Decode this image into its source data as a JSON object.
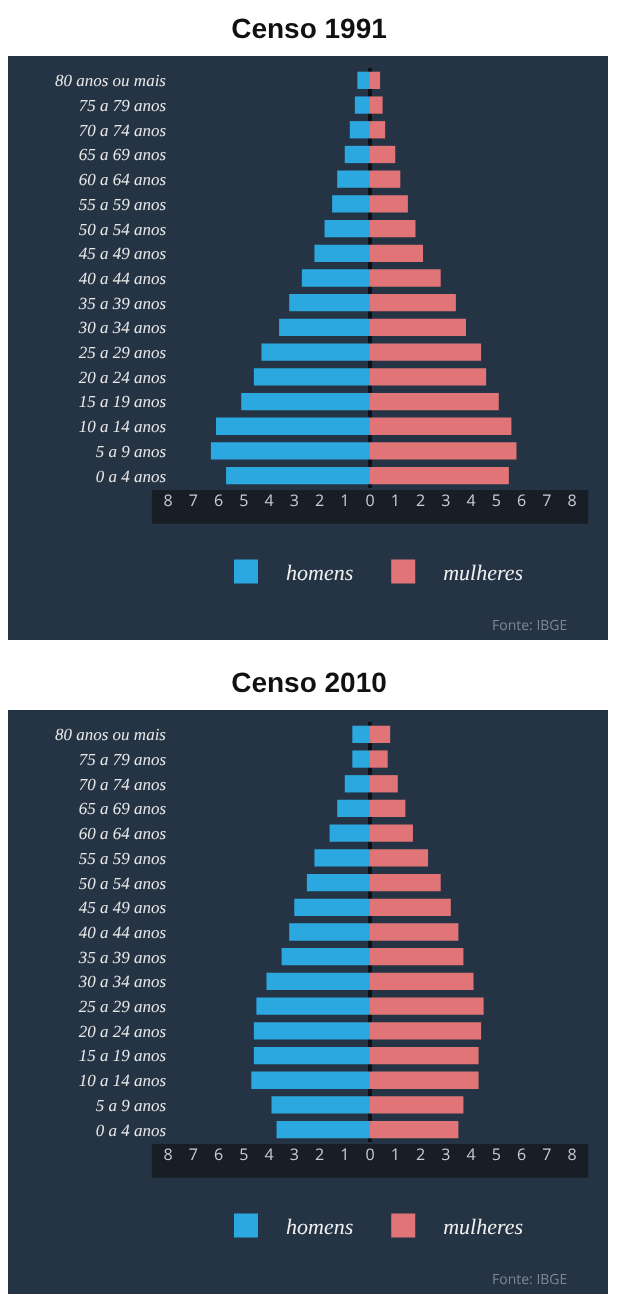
{
  "chart_data": [
    {
      "type": "bar",
      "title": "Censo 1991",
      "orientation": "horizontal",
      "legend": "bottom",
      "stacked": true,
      "categories": [
        "80 anos ou mais",
        "75 a 79 anos",
        "70 a 74 anos",
        "65 a 69 anos",
        "60 a 64 anos",
        "55 a 59 anos",
        "50 a 54 anos",
        "45 a 49 anos",
        "40 a 44 anos",
        "35 a 39 anos",
        "30 a 34 anos",
        "25 a 29 anos",
        "20 a 24 anos",
        "15 a 19 anos",
        "10 a 14 anos",
        "5 a 9 anos",
        "0 a 4 anos"
      ],
      "series": [
        {
          "name": "homens",
          "color": "#2ba8e0",
          "values": [
            -0.5,
            -0.6,
            -0.8,
            -1.0,
            -1.3,
            -1.5,
            -1.8,
            -2.2,
            -2.7,
            -3.2,
            -3.6,
            -4.3,
            -4.6,
            -5.1,
            -6.1,
            -6.3,
            -5.7
          ]
        },
        {
          "name": "mulheres",
          "color": "#e07476",
          "values": [
            0.4,
            0.5,
            0.6,
            1.0,
            1.2,
            1.5,
            1.8,
            2.1,
            2.8,
            3.4,
            3.8,
            4.4,
            4.6,
            5.1,
            5.6,
            5.8,
            5.5
          ]
        }
      ],
      "xlim": [
        -8,
        8
      ],
      "xticks": [
        {
          "value": -8,
          "label": "8"
        },
        {
          "value": -7,
          "label": "7"
        },
        {
          "value": -6,
          "label": "6"
        },
        {
          "value": -5,
          "label": "5"
        },
        {
          "value": -4,
          "label": "4"
        },
        {
          "value": -3,
          "label": "3"
        },
        {
          "value": -2,
          "label": "2"
        },
        {
          "value": -1,
          "label": "1"
        },
        0,
        1,
        2,
        3,
        4,
        5,
        6,
        7,
        8
      ],
      "annotations": [
        "Fonte: IBGE"
      ]
    },
    {
      "type": "bar",
      "title": "Censo 2010",
      "orientation": "horizontal",
      "legend": "bottom",
      "stacked": true,
      "categories": [
        "80 anos ou mais",
        "75 a 79 anos",
        "70 a 74 anos",
        "65 a 69 anos",
        "60 a 64 anos",
        "55 a 59 anos",
        "50 a 54 anos",
        "45 a 49 anos",
        "40 a 44 anos",
        "35 a 39 anos",
        "30 a 34 anos",
        "25 a 29 anos",
        "20 a 24 anos",
        "15 a 19 anos",
        "10 a 14 anos",
        "5 a 9 anos",
        "0 a 4 anos"
      ],
      "series": [
        {
          "name": "homens",
          "color": "#2ba8e0",
          "values": [
            -0.7,
            -0.7,
            -1.0,
            -1.3,
            -1.6,
            -2.2,
            -2.5,
            -3.0,
            -3.2,
            -3.5,
            -4.1,
            -4.5,
            -4.6,
            -4.6,
            -4.7,
            -3.9,
            -3.7
          ]
        },
        {
          "name": "mulheres",
          "color": "#e07476",
          "values": [
            0.8,
            0.7,
            1.1,
            1.4,
            1.7,
            2.3,
            2.8,
            3.2,
            3.5,
            3.7,
            4.1,
            4.5,
            4.4,
            4.3,
            4.3,
            3.7,
            3.5
          ]
        }
      ],
      "xlim": [
        -8,
        8
      ],
      "xticks": [
        {
          "value": -8,
          "label": "8"
        },
        {
          "value": -7,
          "label": "7"
        },
        {
          "value": -6,
          "label": "6"
        },
        {
          "value": -5,
          "label": "5"
        },
        {
          "value": -4,
          "label": "4"
        },
        {
          "value": -3,
          "label": "3"
        },
        {
          "value": -2,
          "label": "2"
        },
        {
          "value": -1,
          "label": "1"
        },
        0,
        1,
        2,
        3,
        4,
        5,
        6,
        7,
        8
      ],
      "annotations": [
        "Fonte: IBGE"
      ]
    }
  ]
}
